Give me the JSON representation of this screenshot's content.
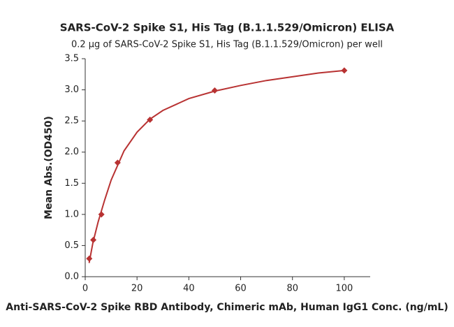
{
  "chart_data": {
    "type": "scatter",
    "title": "SARS-CoV-2 Spike S1, His Tag (B.1.1.529/Omicron) ELISA",
    "subtitle": "0.2 μg of SARS-CoV-2 Spike S1, His Tag (B.1.1.529/Omicron) per well",
    "x_label": "Anti-SARS-CoV-2 Spike RBD Antibody, Chimeric mAb, Human IgG1 Conc. (ng/mL)",
    "y_label": "Mean Abs.(OD450)",
    "x": [
      1.5625,
      3.125,
      6.25,
      12.5,
      25,
      50,
      100
    ],
    "values": [
      0.29,
      0.59,
      1.0,
      1.83,
      2.52,
      2.99,
      3.31
    ],
    "color": "#b83232",
    "curve": {
      "x": [
        1.5,
        3,
        5,
        7.5,
        10,
        15,
        20,
        25,
        30,
        40,
        50,
        60,
        70,
        80,
        90,
        100
      ],
      "values": [
        0.22,
        0.55,
        0.88,
        1.23,
        1.55,
        2.02,
        2.32,
        2.53,
        2.67,
        2.86,
        2.98,
        3.07,
        3.15,
        3.21,
        3.27,
        3.31
      ]
    },
    "xlim": [
      0,
      110
    ],
    "xticks": [
      0,
      20,
      40,
      60,
      80,
      100
    ],
    "ylim": [
      0,
      3.5
    ],
    "yticks": [
      {
        "value": 0,
        "label": "0.0"
      },
      0.5,
      {
        "value": 1,
        "label": "1.0"
      },
      1.5,
      {
        "value": 2,
        "label": "2.0"
      },
      2.5,
      {
        "value": 3,
        "label": "3.0"
      },
      3.5
    ]
  }
}
